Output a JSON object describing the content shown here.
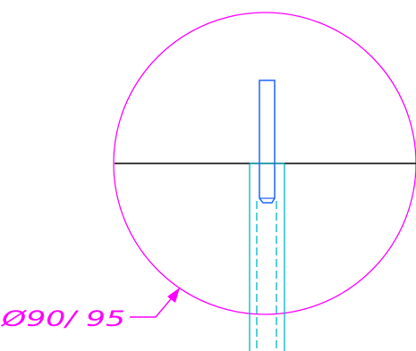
{
  "drawing": {
    "background": "#ffffff",
    "colors": {
      "circle": "#ff00ff",
      "centerline": "#000000",
      "pin": "#1e64ff",
      "sleeve": "#00b4c8",
      "dimension": "#ff00ff"
    },
    "dimension": {
      "label": "Ø90/ 95"
    }
  }
}
